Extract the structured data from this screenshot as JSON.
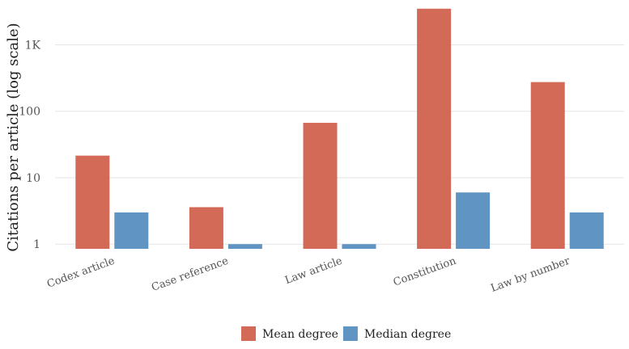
{
  "chart_data": {
    "type": "bar",
    "title": "",
    "xlabel": "",
    "ylabel": "Citations per article (log scale)",
    "y_scale": "log",
    "ylim": [
      0.85,
      4000
    ],
    "grid": "horizontal",
    "legend_position": "bottom",
    "categories": [
      "Codex article",
      "Case reference",
      "Law article",
      "Constitution",
      "Law by number"
    ],
    "y_ticks": [
      1,
      10,
      100,
      1000
    ],
    "y_tick_labels": [
      "1",
      "10",
      "100",
      "1K"
    ],
    "series": [
      {
        "name": "Mean degree",
        "color": "#cd5a45",
        "values": [
          21.5,
          3.6,
          67,
          3500,
          275
        ]
      },
      {
        "name": "Median degree",
        "color": "#4f89bd",
        "values": [
          3,
          1,
          1,
          6,
          3
        ]
      }
    ]
  }
}
